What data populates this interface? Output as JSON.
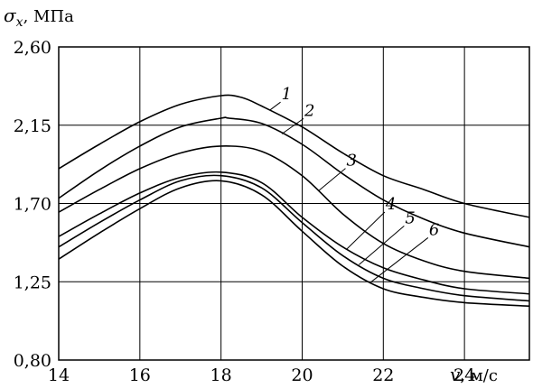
{
  "chart_data": {
    "type": "line",
    "ylabel": {
      "symbol": "σ",
      "subscript": "x",
      "unit": ", МПа"
    },
    "xlabel": {
      "symbol": "v",
      "unit": ", м/с"
    },
    "xlim": [
      14,
      25.6
    ],
    "ylim": [
      0.8,
      2.6
    ],
    "x_ticks": [
      14,
      16,
      18,
      20,
      22,
      24
    ],
    "y_ticks": [
      0.8,
      1.25,
      1.7,
      2.15,
      2.6
    ],
    "x_tick_labels": [
      "14",
      "16",
      "18",
      "20",
      "22",
      "24"
    ],
    "y_tick_labels": [
      "0,80",
      "1,25",
      "1,70",
      "2,15",
      "2,60"
    ],
    "grid": true,
    "series": [
      {
        "name": "1",
        "x": [
          14,
          15,
          16,
          17,
          18,
          18.5,
          19,
          20,
          21,
          22,
          23,
          24,
          25.6
        ],
        "y": [
          1.9,
          2.04,
          2.17,
          2.27,
          2.32,
          2.31,
          2.26,
          2.14,
          1.99,
          1.86,
          1.78,
          1.7,
          1.62
        ]
      },
      {
        "name": "2",
        "x": [
          14,
          15,
          16,
          17,
          18,
          18.2,
          19,
          20,
          21,
          22,
          23,
          24,
          25.6
        ],
        "y": [
          1.73,
          1.89,
          2.03,
          2.14,
          2.19,
          2.19,
          2.16,
          2.04,
          1.87,
          1.72,
          1.61,
          1.53,
          1.45
        ]
      },
      {
        "name": "3",
        "x": [
          14,
          15,
          16,
          17,
          18,
          19,
          20,
          21,
          22,
          23,
          24,
          25.6
        ],
        "y": [
          1.65,
          1.78,
          1.9,
          1.99,
          2.03,
          2.0,
          1.86,
          1.64,
          1.47,
          1.37,
          1.31,
          1.27
        ]
      },
      {
        "name": "4",
        "x": [
          14,
          15,
          16,
          17,
          18,
          19,
          20,
          21,
          22,
          23,
          24,
          25.6
        ],
        "y": [
          1.51,
          1.64,
          1.76,
          1.85,
          1.88,
          1.82,
          1.62,
          1.45,
          1.33,
          1.26,
          1.21,
          1.18
        ]
      },
      {
        "name": "5",
        "x": [
          14,
          15,
          16,
          17,
          18,
          19,
          20,
          21,
          22,
          23,
          24,
          25.6
        ],
        "y": [
          1.45,
          1.59,
          1.72,
          1.83,
          1.86,
          1.79,
          1.59,
          1.4,
          1.27,
          1.21,
          1.17,
          1.14
        ]
      },
      {
        "name": "6",
        "x": [
          14,
          15,
          16,
          17,
          18,
          19,
          20,
          21,
          22,
          23,
          24,
          25.6
        ],
        "y": [
          1.38,
          1.53,
          1.67,
          1.79,
          1.83,
          1.75,
          1.54,
          1.34,
          1.21,
          1.16,
          1.13,
          1.11
        ]
      }
    ]
  }
}
